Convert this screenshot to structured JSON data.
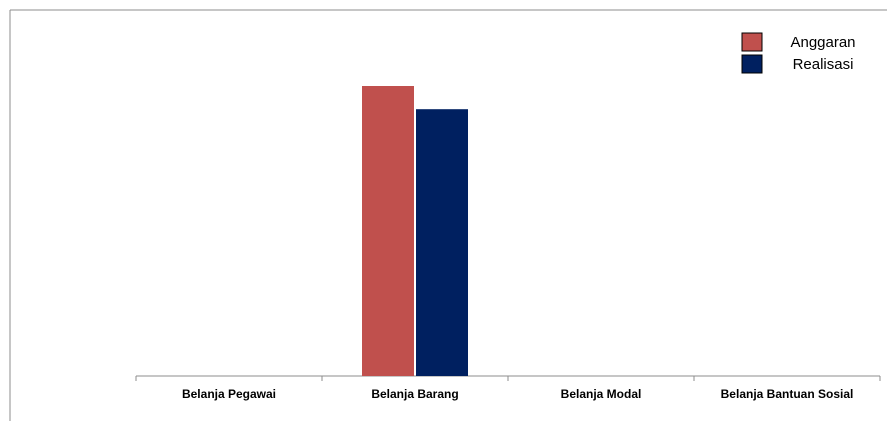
{
  "chart_data": {
    "type": "bar",
    "title": "",
    "xlabel": "",
    "ylabel": "",
    "categories": [
      "Belanja Pegawai",
      "Belanja Barang",
      "Belanja Modal",
      "Belanja Bantuan Sosial"
    ],
    "series": [
      {
        "name": "Anggaran",
        "values": [
          0,
          100,
          0,
          0
        ],
        "color": "#C0504D"
      },
      {
        "name": "Realisasi",
        "values": [
          0,
          92,
          0,
          0
        ],
        "color": "#002060"
      }
    ],
    "ylim": [
      0,
      120
    ],
    "y_axis_visible": false,
    "grid": false,
    "legend_position": "top-right"
  }
}
